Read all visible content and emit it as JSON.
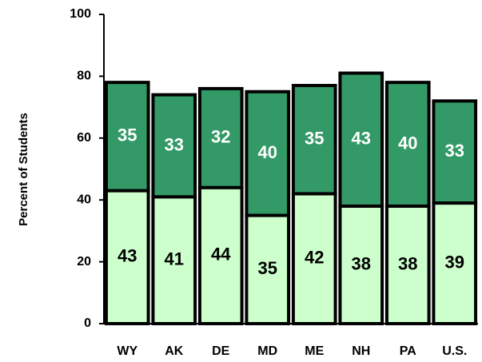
{
  "chart_data": {
    "type": "stacked_bar",
    "y_label": "Percent of Students",
    "categories": [
      "WY",
      "AK",
      "DE",
      "MD",
      "ME",
      "NH",
      "PA",
      "U.S."
    ],
    "series": [
      {
        "color": "#ccffcc",
        "values": [
          43,
          41,
          44,
          35,
          42,
          38,
          38,
          39
        ]
      },
      {
        "color": "#339966",
        "values": [
          35,
          33,
          32,
          40,
          35,
          43,
          40,
          33
        ]
      }
    ],
    "ylim": [
      0,
      100
    ],
    "yticks": [
      0,
      20,
      40,
      60,
      80,
      100
    ]
  }
}
